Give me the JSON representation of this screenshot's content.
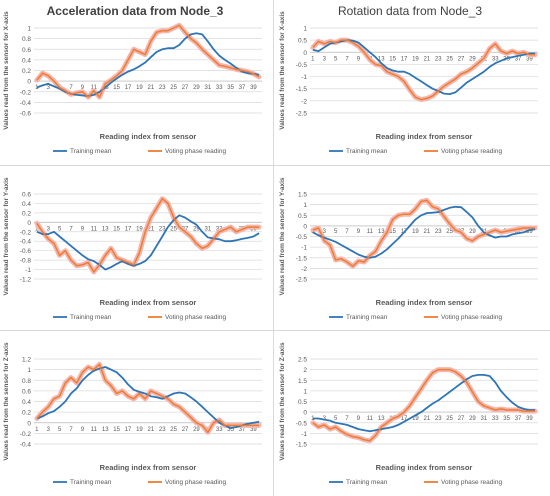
{
  "titles": {
    "left": "Acceleration data from Node_3",
    "right": "Rotation data from Node_3"
  },
  "colors": {
    "training": "#2e75b6",
    "voting": "#ed7d31",
    "voting_glow": "#f4b6b0",
    "grid": "#d9d9d9",
    "text": "#595959"
  },
  "chart_data": [
    {
      "type": "line",
      "title": "Acceleration data from Node_3",
      "xlabel": "Reading index from sensor",
      "ylabel": "Values read from the sensor for X-axis",
      "ylim": [
        -0.6,
        1
      ],
      "yticks": [
        "-0.6",
        "-0.4",
        "-0.2",
        "0",
        "0.2",
        "0.4",
        "0.6",
        "0.8",
        "1"
      ],
      "yvals": [
        -0.6,
        -0.4,
        -0.2,
        0,
        0.2,
        0.4,
        0.6,
        0.8,
        1
      ],
      "xticks": [
        "1",
        "3",
        "5",
        "7",
        "9",
        "11",
        "13",
        "15",
        "17",
        "19",
        "21",
        "23",
        "25",
        "27",
        "29",
        "31",
        "33",
        "35",
        "37",
        "39"
      ],
      "xtick_mode": "axis",
      "legend": "bottom",
      "series": [
        {
          "name": "Training mean",
          "values": [
            -0.12,
            -0.08,
            -0.05,
            -0.1,
            -0.14,
            -0.2,
            -0.24,
            -0.26,
            -0.27,
            -0.28,
            -0.26,
            -0.2,
            -0.12,
            -0.03,
            0.05,
            0.12,
            0.18,
            0.22,
            0.28,
            0.35,
            0.45,
            0.55,
            0.6,
            0.62,
            0.62,
            0.68,
            0.8,
            0.88,
            0.9,
            0.88,
            0.75,
            0.6,
            0.48,
            0.4,
            0.33,
            0.25,
            0.18,
            0.15,
            0.14,
            0.12
          ]
        },
        {
          "name": "Voting phase reading",
          "values": [
            0.02,
            0.15,
            0.1,
            0.0,
            -0.12,
            -0.18,
            -0.25,
            -0.22,
            -0.2,
            -0.3,
            -0.18,
            -0.3,
            -0.05,
            0.02,
            0.1,
            0.2,
            0.4,
            0.6,
            0.55,
            0.5,
            0.75,
            0.92,
            0.95,
            0.95,
            1.0,
            1.05,
            0.92,
            0.8,
            0.72,
            0.6,
            0.5,
            0.4,
            0.3,
            0.28,
            0.25,
            0.22,
            0.2,
            0.18,
            0.14,
            0.08
          ]
        }
      ]
    },
    {
      "type": "line",
      "title": "Rotation data from Node_3",
      "xlabel": "Reading index from sensor",
      "ylabel": "Values read from the sensor for X-axis",
      "ylim": [
        -2.5,
        1
      ],
      "yticks": [
        "-2.5",
        "-2",
        "-1.5",
        "-1",
        "-0.5",
        "0",
        "0.5",
        "1"
      ],
      "yvals": [
        -2.5,
        -2,
        -1.5,
        -1,
        -0.5,
        0,
        0.5,
        1
      ],
      "xticks": [
        "1",
        "3",
        "5",
        "7",
        "9",
        "11",
        "13",
        "15",
        "17",
        "19",
        "21",
        "23",
        "25",
        "27",
        "29",
        "31",
        "33",
        "35",
        "37",
        "39"
      ],
      "xtick_mode": "axis",
      "legend": "bottom",
      "series": [
        {
          "name": "Training mean",
          "values": [
            0.1,
            0.05,
            0.2,
            0.35,
            0.4,
            0.45,
            0.5,
            0.48,
            0.4,
            0.2,
            0.0,
            -0.2,
            -0.45,
            -0.65,
            -0.75,
            -0.8,
            -0.8,
            -0.9,
            -1.05,
            -1.2,
            -1.35,
            -1.5,
            -1.6,
            -1.7,
            -1.72,
            -1.65,
            -1.45,
            -1.25,
            -1.1,
            -0.95,
            -0.8,
            -0.6,
            -0.45,
            -0.35,
            -0.25,
            -0.2,
            -0.15,
            -0.1,
            -0.05,
            -0.05
          ]
        },
        {
          "name": "Voting phase reading",
          "values": [
            0.2,
            0.45,
            0.35,
            0.45,
            0.4,
            0.5,
            0.5,
            0.4,
            0.25,
            0.0,
            -0.3,
            -0.5,
            -0.55,
            -0.8,
            -0.9,
            -1.0,
            -1.2,
            -1.55,
            -1.85,
            -1.95,
            -1.9,
            -1.8,
            -1.6,
            -1.4,
            -1.25,
            -1.1,
            -0.9,
            -0.8,
            -0.65,
            -0.45,
            -0.25,
            0.15,
            0.35,
            0.05,
            -0.05,
            0.05,
            -0.05,
            0.0,
            -0.1,
            -0.1
          ]
        }
      ]
    },
    {
      "type": "line",
      "title": "",
      "xlabel": "Reading index from sensor",
      "ylabel": "Values read from the sensor for Y-axis",
      "ylim": [
        -1.2,
        0.6
      ],
      "yticks": [
        "-1.2",
        "-1",
        "-0.8",
        "-0.6",
        "-0.4",
        "-0.2",
        "0",
        "0.2",
        "0.4",
        "0.6"
      ],
      "yvals": [
        -1.2,
        -1,
        -0.8,
        -0.6,
        -0.4,
        -0.2,
        0,
        0.2,
        0.4,
        0.6
      ],
      "xticks": [
        "1",
        "3",
        "5",
        "7",
        "9",
        "11",
        "13",
        "15",
        "17",
        "19",
        "21",
        "23",
        "25",
        "27",
        "29",
        "31",
        "33",
        "35",
        "37",
        "39"
      ],
      "xtick_mode": "axis",
      "legend": "bottom",
      "series": [
        {
          "name": "Training mean",
          "values": [
            -0.2,
            -0.25,
            -0.25,
            -0.2,
            -0.3,
            -0.4,
            -0.5,
            -0.6,
            -0.7,
            -0.78,
            -0.82,
            -0.9,
            -1.0,
            -0.95,
            -0.88,
            -0.82,
            -0.88,
            -0.92,
            -0.88,
            -0.82,
            -0.7,
            -0.5,
            -0.3,
            -0.1,
            0.05,
            0.15,
            0.1,
            0.02,
            -0.05,
            -0.2,
            -0.32,
            -0.34,
            -0.36,
            -0.4,
            -0.4,
            -0.38,
            -0.35,
            -0.33,
            -0.3,
            -0.23
          ]
        },
        {
          "name": "Voting phase reading",
          "values": [
            -0.02,
            -0.2,
            -0.35,
            -0.45,
            -0.7,
            -0.6,
            -0.8,
            -0.92,
            -0.9,
            -0.85,
            -1.05,
            -0.9,
            -0.7,
            -0.55,
            -0.75,
            -0.8,
            -0.85,
            -0.9,
            -0.65,
            -0.2,
            0.1,
            0.3,
            0.5,
            0.4,
            0.1,
            -0.1,
            -0.2,
            -0.3,
            -0.45,
            -0.55,
            -0.5,
            -0.35,
            -0.2,
            -0.15,
            -0.1,
            -0.2,
            -0.15,
            -0.1,
            -0.1,
            -0.1
          ]
        }
      ]
    },
    {
      "type": "line",
      "title": "",
      "xlabel": "Reading index from sensor",
      "ylabel": "Values read from the sensor for Y-axis",
      "ylim": [
        -2.5,
        1.5
      ],
      "yticks": [
        "-2.5",
        "-2",
        "-1.5",
        "-1",
        "-0.5",
        "0",
        "0.5",
        "1",
        "1.5"
      ],
      "yvals": [
        -2.5,
        -2,
        -1.5,
        -1,
        -0.5,
        0,
        0.5,
        1,
        1.5
      ],
      "xticks": [
        "1",
        "3",
        "5",
        "7",
        "9",
        "11",
        "13",
        "15",
        "17",
        "19",
        "21",
        "23",
        "25",
        "27",
        "29",
        "31",
        "33",
        "35",
        "37",
        "39"
      ],
      "xtick_mode": "inside",
      "legend": "bottom",
      "series": [
        {
          "name": "Training mean",
          "values": [
            -0.3,
            -0.45,
            -0.55,
            -0.65,
            -0.75,
            -0.9,
            -1.05,
            -1.2,
            -1.35,
            -1.45,
            -1.5,
            -1.45,
            -1.3,
            -1.1,
            -0.85,
            -0.6,
            -0.3,
            0.0,
            0.3,
            0.5,
            0.6,
            0.62,
            0.65,
            0.75,
            0.85,
            0.9,
            0.88,
            0.65,
            0.4,
            0.0,
            -0.3,
            -0.45,
            -0.55,
            -0.5,
            -0.5,
            -0.4,
            -0.35,
            -0.3,
            -0.2,
            -0.15
          ]
        },
        {
          "name": "Voting phase reading",
          "values": [
            -0.2,
            -0.1,
            -0.7,
            -0.9,
            -1.6,
            -1.55,
            -1.7,
            -1.9,
            -1.65,
            -1.7,
            -1.4,
            -1.2,
            -0.7,
            -0.3,
            0.3,
            0.5,
            0.55,
            0.55,
            0.8,
            1.15,
            1.2,
            0.9,
            0.8,
            0.45,
            0.1,
            -0.2,
            -0.3,
            -0.6,
            -0.7,
            -0.5,
            -0.4,
            -0.3,
            -0.2,
            -0.3,
            -0.25,
            -0.2,
            -0.15,
            -0.1,
            -0.1,
            -0.1
          ]
        }
      ]
    },
    {
      "type": "line",
      "title": "",
      "xlabel": "Reading index from sensor",
      "ylabel": "Values read from the sensor for Z-axis",
      "ylim": [
        -0.4,
        1.2
      ],
      "yticks": [
        "-0.4",
        "-0.2",
        "0",
        "0.2",
        "0.4",
        "0.6",
        "0.8",
        "1",
        "1.2"
      ],
      "yvals": [
        -0.4,
        -0.2,
        0,
        0.2,
        0.4,
        0.6,
        0.8,
        1,
        1.2
      ],
      "xticks": [
        "1",
        "3",
        "5",
        "7",
        "9",
        "11",
        "13",
        "15",
        "17",
        "19",
        "21",
        "23",
        "25",
        "27",
        "29",
        "31",
        "33",
        "35",
        "37",
        "39"
      ],
      "xtick_mode": "axis",
      "legend": "bottom",
      "series": [
        {
          "name": "Training mean",
          "values": [
            0.08,
            0.12,
            0.18,
            0.22,
            0.3,
            0.4,
            0.55,
            0.65,
            0.8,
            0.9,
            0.98,
            1.02,
            1.05,
            1.0,
            0.95,
            0.85,
            0.72,
            0.62,
            0.58,
            0.55,
            0.5,
            0.48,
            0.45,
            0.5,
            0.55,
            0.57,
            0.55,
            0.48,
            0.4,
            0.3,
            0.2,
            0.1,
            0.0,
            -0.05,
            -0.1,
            -0.08,
            -0.05,
            -0.02,
            0.0,
            0.02
          ]
        },
        {
          "name": "Voting phase reading",
          "values": [
            0.08,
            0.2,
            0.3,
            0.45,
            0.5,
            0.75,
            0.85,
            0.75,
            0.95,
            1.05,
            1.0,
            1.1,
            0.8,
            0.7,
            0.55,
            0.6,
            0.5,
            0.45,
            0.55,
            0.45,
            0.6,
            0.55,
            0.5,
            0.45,
            0.35,
            0.3,
            0.2,
            0.1,
            0.0,
            -0.05,
            -0.18,
            0.0,
            0.05,
            -0.05,
            -0.05,
            -0.05,
            -0.05,
            -0.05,
            -0.05,
            -0.05
          ]
        }
      ]
    },
    {
      "type": "line",
      "title": "",
      "xlabel": "Reading index from sensor",
      "ylabel": "Values read from the sensor for Z-axis",
      "ylim": [
        -1.5,
        2.5
      ],
      "yticks": [
        "-1.5",
        "-1",
        "-0.5",
        "0",
        "0.5",
        "1",
        "1.5",
        "2",
        "2.5"
      ],
      "yvals": [
        -1.5,
        -1,
        -0.5,
        0,
        0.5,
        1,
        1.5,
        2,
        2.5
      ],
      "xticks": [
        "1",
        "3",
        "5",
        "7",
        "9",
        "11",
        "13",
        "15",
        "17",
        "19",
        "21",
        "23",
        "25",
        "27",
        "29",
        "31",
        "33",
        "35",
        "37",
        "39"
      ],
      "xtick_mode": "axis",
      "legend": "bottom",
      "series": [
        {
          "name": "Training mean",
          "values": [
            -0.3,
            -0.3,
            -0.35,
            -0.4,
            -0.5,
            -0.55,
            -0.6,
            -0.7,
            -0.8,
            -0.85,
            -0.9,
            -0.85,
            -0.8,
            -0.75,
            -0.7,
            -0.6,
            -0.45,
            -0.3,
            -0.15,
            0.0,
            0.2,
            0.4,
            0.55,
            0.75,
            0.95,
            1.15,
            1.35,
            1.55,
            1.7,
            1.75,
            1.75,
            1.7,
            1.4,
            1.0,
            0.7,
            0.45,
            0.25,
            0.15,
            0.1,
            0.1
          ]
        },
        {
          "name": "Voting phase reading",
          "values": [
            -0.5,
            -0.7,
            -0.6,
            -0.8,
            -0.7,
            -0.9,
            -1.05,
            -1.15,
            -1.2,
            -1.3,
            -1.35,
            -1.1,
            -0.7,
            -0.5,
            -0.3,
            -0.2,
            0.0,
            0.3,
            0.7,
            1.1,
            1.5,
            1.85,
            2.0,
            2.0,
            2.0,
            1.9,
            1.7,
            1.4,
            0.95,
            0.5,
            0.3,
            0.2,
            0.1,
            0.15,
            0.1,
            0.1,
            0.1,
            0.05,
            0.05,
            0.05
          ]
        }
      ]
    }
  ]
}
